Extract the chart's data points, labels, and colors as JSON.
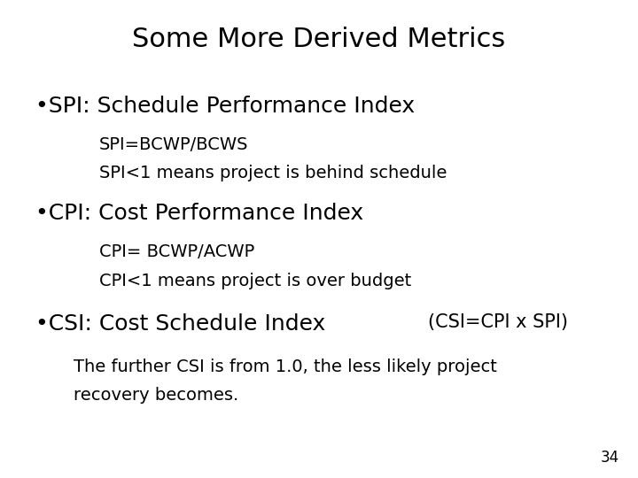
{
  "title": "Some More Derived Metrics",
  "background_color": "#ffffff",
  "text_color": "#000000",
  "bullet1_main": "•SPI: Schedule Performance Index",
  "bullet1_sub1": "SPI=BCWP/BCWS",
  "bullet1_sub2": "SPI<1 means project is behind schedule",
  "bullet2_main": "•CPI: Cost Performance Index",
  "bullet2_sub1": "CPI= BCWP/ACWP",
  "bullet2_sub2": "CPI<1 means project is over budget",
  "bullet3_main": "•CSI: Cost Schedule Index  ",
  "bullet3_main2": "(CSI=CPI x SPI)",
  "bullet3_sub1": "The further CSI is from 1.0, the less likely project",
  "bullet3_sub2": "recovery becomes.",
  "page_number": "34",
  "title_fontsize": 22,
  "bullet_fontsize": 18,
  "sub_fontsize": 14,
  "csi_part2_fontsize": 15,
  "page_num_fontsize": 12,
  "font_family": "DejaVu Sans"
}
